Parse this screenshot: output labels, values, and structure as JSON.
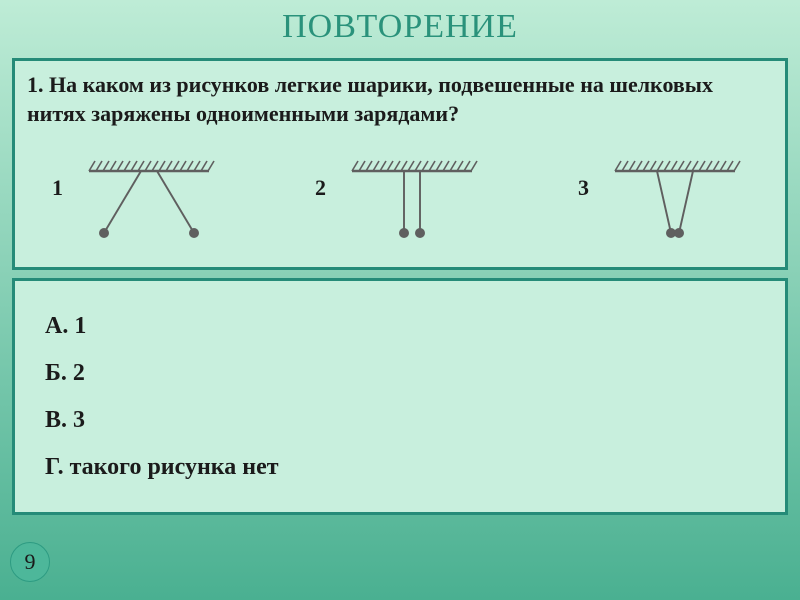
{
  "type": "infographic",
  "colors": {
    "slide_bg_top": "#beecd6",
    "slide_bg_bottom": "#4ab091",
    "title_color": "#2a927b",
    "panel_bg": "#c8efdd",
    "panel_border": "#258b78",
    "text_color": "#1b1b1b",
    "diagram_color": "#5f5f5f",
    "badge_bg": "#4db79a",
    "badge_border": "#2d9b82",
    "badge_text": "#1a1a1a"
  },
  "title": "ПОВТОРЕНИЕ",
  "question": "1. На каком из рисунков легкие шарики, подвешенные на шелковых нитях заряжены одноименными зарядами?",
  "diagram_labels": [
    "1",
    "2",
    "3"
  ],
  "diagram_svg": {
    "width": 160,
    "height": 90,
    "stroke_width": 2.4,
    "ball_radius": 5,
    "hatch_spacing": 7
  },
  "answers": {
    "a": "А. 1",
    "b": "Б. 2",
    "c": "В. 3",
    "d": "Г. такого рисунка нет"
  },
  "page_number": "9"
}
